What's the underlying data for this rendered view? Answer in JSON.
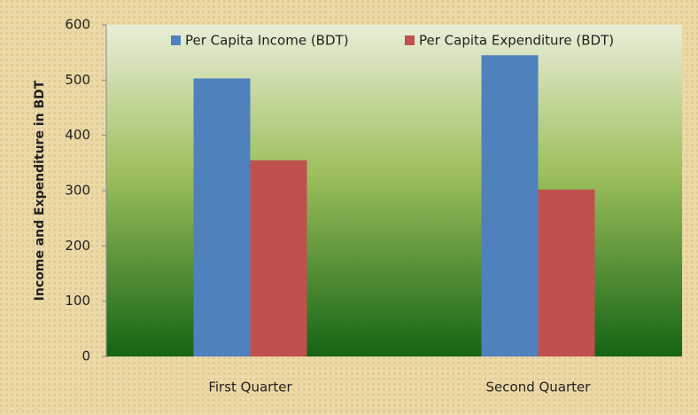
{
  "chart_data": {
    "type": "bar",
    "y_label": "Income and Expenditure in BDT",
    "categories": [
      "First Quarter",
      "Second Quarter"
    ],
    "series": [
      {
        "name": "Per Capita Income (BDT)",
        "color": "#4f81bd",
        "values": [
          503,
          545
        ]
      },
      {
        "name": "Per Capita Expenditure (BDT)",
        "color": "#c0504d",
        "values": [
          355,
          302
        ]
      }
    ],
    "ylim": [
      0,
      600
    ],
    "yticks": [
      0,
      100,
      200,
      300,
      400,
      500,
      600
    ],
    "legend": "top"
  }
}
